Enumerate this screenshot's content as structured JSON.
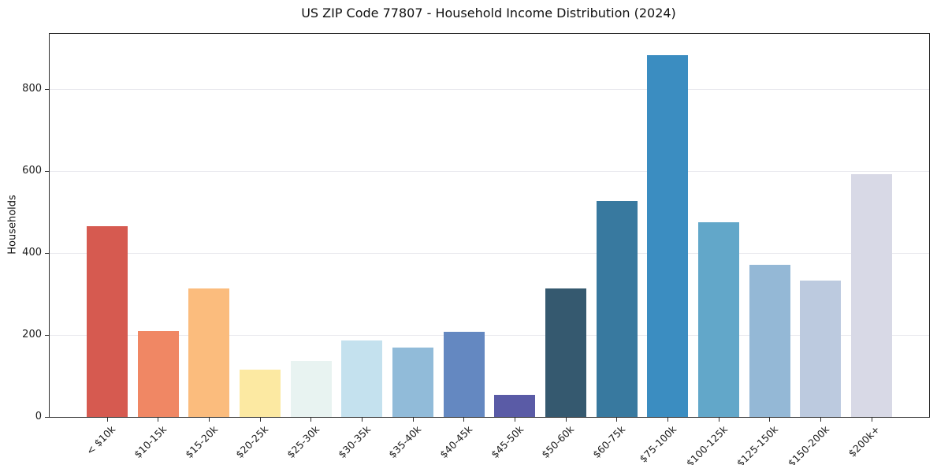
{
  "chart_data": {
    "type": "bar",
    "title": "US ZIP Code 77807 - Household Income Distribution (2024)",
    "xlabel": "",
    "ylabel": "Households",
    "categories": [
      "< $10k",
      "$10-15k",
      "$15-20k",
      "$20-25k",
      "$25-30k",
      "$30-35k",
      "$35-40k",
      "$40-45k",
      "$45-50k",
      "$50-60k",
      "$60-75k",
      "$75-100k",
      "$100-125k",
      "$125-150k",
      "$150-200k",
      "$200k+"
    ],
    "values": [
      465,
      210,
      314,
      115,
      137,
      186,
      170,
      207,
      53,
      314,
      527,
      884,
      476,
      372,
      333,
      592
    ],
    "bar_colors": [
      "#d65a50",
      "#f08764",
      "#fbbc7d",
      "#fce9a2",
      "#e8f3f1",
      "#c4e1ee",
      "#91bbd9",
      "#6488c1",
      "#5a5ba6",
      "#35596f",
      "#38799f",
      "#3b8dc1",
      "#62a7c9",
      "#94b8d6",
      "#bccadf",
      "#d8d9e6"
    ],
    "yticks": [
      0,
      200,
      400,
      600,
      800
    ],
    "ylim": [
      0,
      935
    ],
    "grid": true,
    "gridline_color": "#e9e9ee",
    "background_color": "#ffffff",
    "legend_position": "none"
  }
}
